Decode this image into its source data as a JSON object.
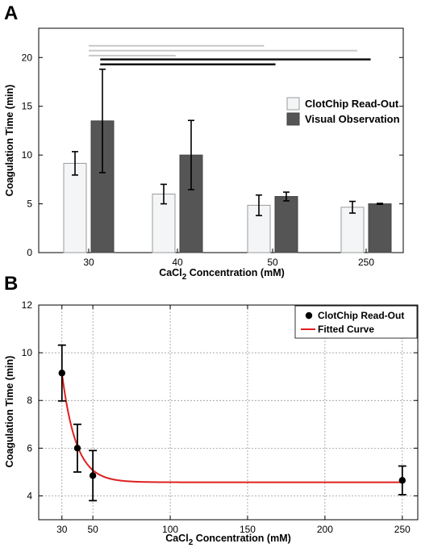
{
  "panels": {
    "a_letter": "A",
    "b_letter": "B"
  },
  "chart_data": [
    {
      "type": "bar",
      "panel": "A",
      "xlabel": "CaCl2 Concentration (mM)",
      "xlabel_main": "CaCl",
      "xlabel_sub": "2",
      "xlabel_rest": " Concentration (mM)",
      "ylabel": "Coagulation Time (min)",
      "ylim": [
        0,
        23
      ],
      "yticks": [
        0,
        5,
        10,
        15,
        20
      ],
      "categories": [
        "30",
        "40",
        "50",
        "250"
      ],
      "series": [
        {
          "name": "ClotChip Read-Out",
          "color": "#f3f5f7",
          "values": [
            9.15,
            6.0,
            4.85,
            4.65
          ],
          "errors": [
            1.2,
            1.0,
            1.05,
            0.6
          ]
        },
        {
          "name": "Visual Observation",
          "color": "#555555",
          "values": [
            13.5,
            10.0,
            5.75,
            5.0
          ],
          "errors": [
            5.3,
            3.55,
            0.45,
            0.05
          ]
        }
      ],
      "grid": false,
      "legend_position": "right",
      "significance_lines": [
        {
          "color": "#c8c8c8",
          "y": 21.2,
          "x_from": 30.0,
          "x_to": 49.1
        },
        {
          "color": "#c8c8c8",
          "y": 20.7,
          "x_from": 30.0,
          "x_to": 58.9
        },
        {
          "color": "#c8c8c8",
          "y": 20.2,
          "x_from": 30.0,
          "x_to": 39.8
        },
        {
          "color": "#111111",
          "y": 19.8,
          "x_from": 31.3,
          "x_to": 60.3
        },
        {
          "color": "#111111",
          "y": 19.3,
          "x_from": 31.3,
          "x_to": 50.3
        }
      ]
    },
    {
      "type": "scatter",
      "panel": "B",
      "xlabel": "CaCl2 Concentration (mM)",
      "xlabel_main": "CaCl",
      "xlabel_sub": "2",
      "xlabel_rest": " Concentration (mM)",
      "ylabel": "Coagulation Time (min)",
      "xlim": [
        15,
        260
      ],
      "ylim": [
        3,
        12
      ],
      "xticks": [
        30,
        50,
        100,
        150,
        200,
        250
      ],
      "yticks": [
        4,
        6,
        8,
        10,
        12
      ],
      "grid": true,
      "legend_position": "top-right",
      "series": [
        {
          "name": "ClotChip Read-Out",
          "color": "#000000",
          "x": [
            30,
            40,
            50,
            250
          ],
          "y": [
            9.15,
            6.0,
            4.85,
            4.65
          ],
          "errors": [
            1.17,
            1.0,
            1.05,
            0.6
          ]
        }
      ],
      "fit": {
        "name": "Fitted Curve",
        "color": "#e02020",
        "x_range": [
          30,
          250
        ],
        "model": "exponential decay",
        "plateau": 4.57,
        "amplitude": 4.58,
        "rate": 0.11,
        "x0": 30
      }
    }
  ]
}
